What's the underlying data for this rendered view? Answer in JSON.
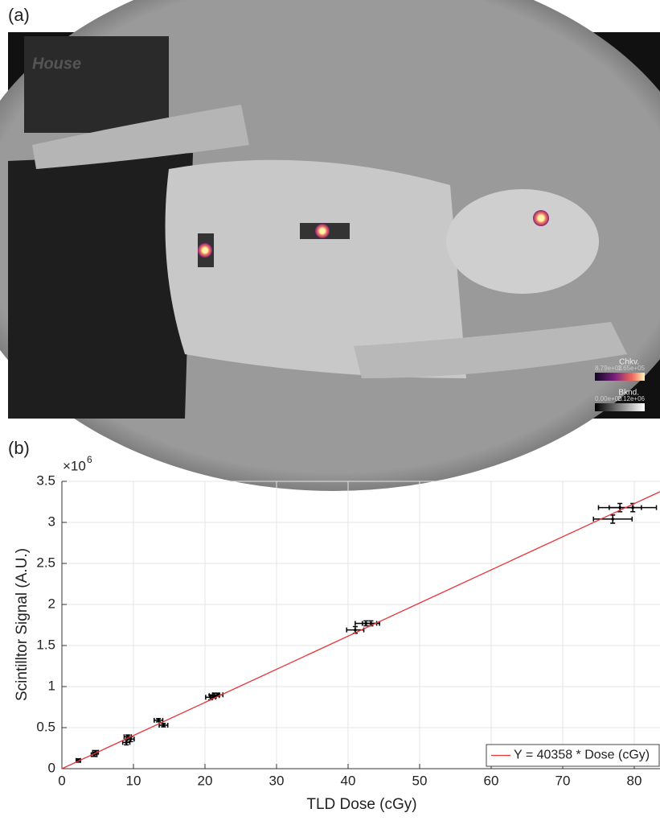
{
  "figure": {
    "panel_a_label": "(a)",
    "panel_b_label": "(b)",
    "photo": {
      "sign_text": "House",
      "colorbars": [
        {
          "name": "Chkv.",
          "min_label": "8.79e+03",
          "max_label": "1.65e+05"
        },
        {
          "name": "Bknd.",
          "min_label": "0.00e+00",
          "max_label": "2.12e+06"
        }
      ]
    }
  },
  "chart_data": {
    "type": "scatter",
    "x_label": "TLD Dose (cGy)",
    "y_label": "Scintilltor Signal (A.U.)",
    "y_multiplier": "×10",
    "y_multiplier_exp": "6",
    "xlim": [
      0,
      83.6
    ],
    "ylim": [
      0,
      3.5
    ],
    "xticks": [
      0,
      10,
      20,
      30,
      40,
      50,
      60,
      70,
      80
    ],
    "yticks": [
      0,
      0.5,
      1,
      1.5,
      2,
      2.5,
      3,
      3.5
    ],
    "grid": true,
    "legend": "lower right",
    "series": [
      {
        "color": "#000000",
        "x": [
          2.3,
          4.5,
          4.7,
          9.0,
          9.2,
          9.6,
          13.5,
          14.2,
          20.8,
          21.3,
          21.8,
          41.0,
          42.5,
          43.2,
          77.0,
          78.0,
          79.8
        ],
        "values": [
          0.1,
          0.17,
          0.2,
          0.32,
          0.39,
          0.36,
          0.59,
          0.53,
          0.87,
          0.89,
          0.9,
          1.69,
          1.77,
          1.77,
          3.04,
          3.18,
          3.18
        ],
        "xerr": [
          0.3,
          0.4,
          0.4,
          0.5,
          0.5,
          0.5,
          0.6,
          0.6,
          0.7,
          0.7,
          0.7,
          1.2,
          1.5,
          1.2,
          2.7,
          3.0,
          3.3
        ],
        "yerr": [
          0.02,
          0.02,
          0.02,
          0.03,
          0.02,
          0.03,
          0.02,
          0.02,
          0.03,
          0.03,
          0.02,
          0.04,
          0.03,
          0.03,
          0.05,
          0.05,
          0.05
        ]
      },
      {
        "type": "line",
        "name": "Y = 40358 * Dose (cGy)",
        "color": "#e8353a",
        "x": [
          0,
          83.6
        ],
        "values": [
          0,
          3.374
        ]
      }
    ]
  }
}
